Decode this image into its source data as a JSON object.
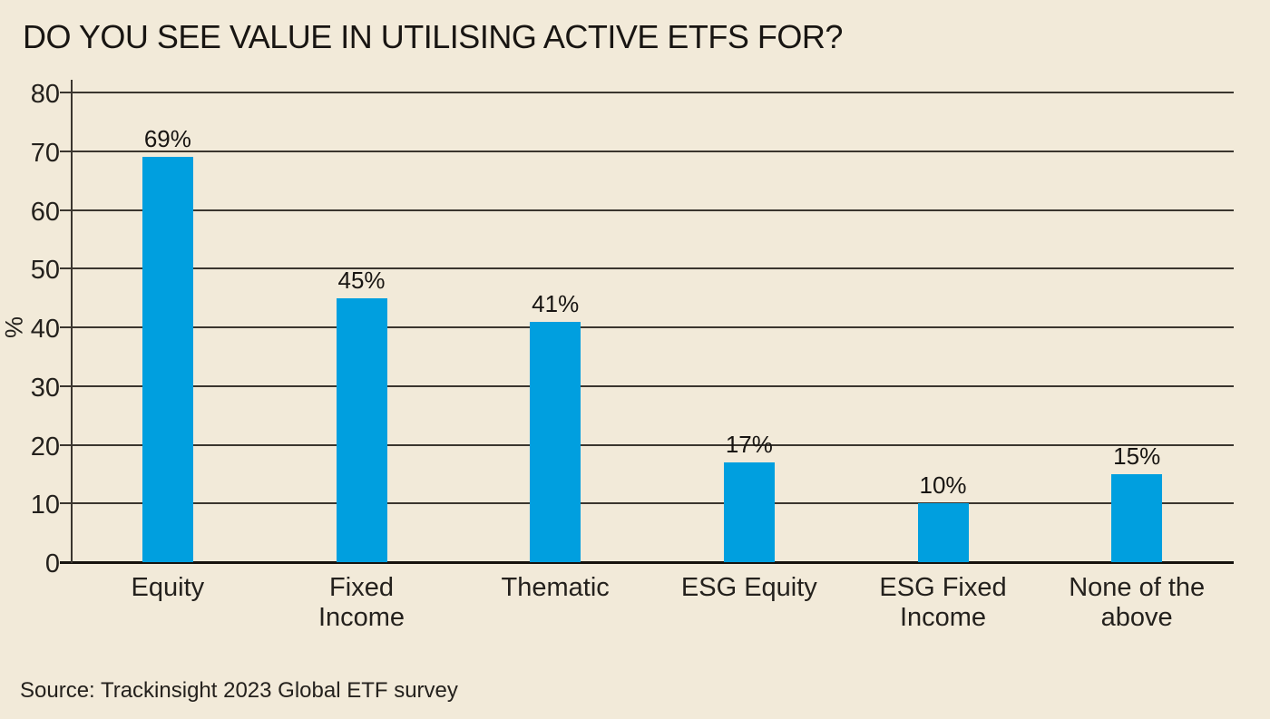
{
  "page": {
    "background_color": "#f2ead9"
  },
  "header": {
    "title": "DO YOU SEE VALUE IN UTILISING ACTIVE ETFS FOR?"
  },
  "chart_data": {
    "type": "bar",
    "title": "DO YOU SEE VALUE IN UTILISING ACTIVE ETFS FOR?",
    "categories": [
      "Equity",
      "Fixed Income",
      "Thematic",
      "ESG Equity",
      "ESG Fixed Income",
      "None of the above"
    ],
    "values": [
      69,
      45,
      41,
      17,
      10,
      15
    ],
    "value_labels": [
      "69%",
      "45%",
      "41%",
      "17%",
      "10%",
      "15%"
    ],
    "xlabel": "",
    "ylabel": "%",
    "ylim": [
      0,
      80
    ],
    "yticks": [
      0,
      10,
      20,
      30,
      40,
      50,
      60,
      70,
      80
    ],
    "grid": true,
    "legend_position": "none",
    "bar_color": "#009fdf",
    "gridline_color": "#3b362f",
    "axis_color": "#16130e"
  },
  "footer": {
    "source": "Source: Trackinsight 2023 Global ETF survey"
  }
}
